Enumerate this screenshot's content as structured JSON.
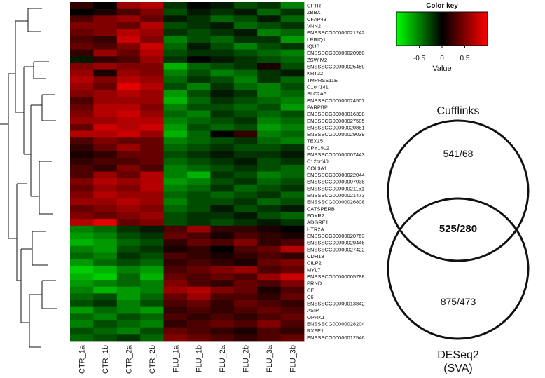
{
  "chart_data": [
    {
      "type": "heatmap",
      "title": "",
      "columns": [
        "CTR_1a",
        "CTR_1b",
        "CTR_2a",
        "CTR_2b",
        "FLU_1a",
        "FLU_1b",
        "FLU_2a",
        "FLU_2b",
        "FLU_3a",
        "FLU_3b"
      ],
      "rows": [
        "CFTR",
        "ZBBX",
        "CFAP43",
        "VNN2",
        "ENSSSCG00000021242",
        "LRRIQ1",
        "IQUB",
        "ENSSSCG00000020960",
        "ZSWIM2",
        "ENSSSCG00000025459",
        "KRT32",
        "TMPRSS11E",
        "C1orf141",
        "SLC2A6",
        "ENSSSCG00000024507",
        "PARPBP",
        "ENSSSCG00000016398",
        "ENSSSCG00000027585",
        "ENSSSCG00000029881",
        "ENSSSCG00000029039",
        "TEX15",
        "DPY19L2",
        "ENSSSCG00000007443",
        "C12orf40",
        "COL9A1",
        "ENSSSCG00000022044",
        "ENSSSCG00000007038",
        "ENSSSCG00000021151",
        "ENSSSCG00000021473",
        "ENSSSCG00000026808",
        "CATSPERB",
        "FOXR2",
        "ADGRE1",
        "HTR2A",
        "ENSSSCG00000020763",
        "ENSSSCG00000029446",
        "ENSSSCG00000027422",
        "CDH19",
        "CILP2",
        "MYL7",
        "ENSSSCG00000005788",
        "PRND",
        "CEL",
        "C6",
        "ENSSSCG00000013842",
        "ASIP",
        "OPRK1",
        "ENSSSCG00000028204",
        "RXFP1",
        "ENSSSCG00000012546"
      ],
      "values": [
        [
          0.2,
          0.0,
          0.6,
          0.7,
          -0.2,
          0.0,
          -0.1,
          -0.3,
          -0.2,
          -0.5
        ],
        [
          0.0,
          0.1,
          0.3,
          0.5,
          -0.3,
          -0.1,
          -0.2,
          -0.1,
          -0.4,
          -0.2
        ],
        [
          0.3,
          0.5,
          0.6,
          0.4,
          -0.1,
          -0.2,
          -0.4,
          -0.3,
          -0.1,
          -0.4
        ],
        [
          0.5,
          0.5,
          0.4,
          0.7,
          -0.3,
          -0.2,
          -0.1,
          -0.4,
          -0.3,
          -0.2
        ],
        [
          0.4,
          0.5,
          0.7,
          0.6,
          -0.2,
          -0.3,
          -0.2,
          -0.1,
          -0.5,
          -0.4
        ],
        [
          0.3,
          0.2,
          0.8,
          0.5,
          -0.5,
          -0.3,
          -0.4,
          -0.2,
          -0.2,
          -0.6
        ],
        [
          0.4,
          0.3,
          0.5,
          0.8,
          -0.4,
          -0.1,
          -0.3,
          -0.5,
          -0.3,
          -0.2
        ],
        [
          0.2,
          0.6,
          0.4,
          0.7,
          -0.3,
          -0.2,
          -0.2,
          -0.3,
          -0.4,
          -0.5
        ],
        [
          -0.1,
          0.2,
          0.3,
          0.6,
          -0.2,
          0.0,
          -0.1,
          -0.2,
          -0.3,
          -0.4
        ],
        [
          0.5,
          0.6,
          0.5,
          0.5,
          -0.7,
          -0.4,
          -0.3,
          -0.2,
          0.1,
          -0.3
        ],
        [
          0.6,
          0.1,
          0.6,
          0.5,
          -0.5,
          -0.3,
          -0.5,
          -0.4,
          -0.2,
          -0.1
        ],
        [
          0.7,
          0.5,
          0.7,
          0.6,
          -0.4,
          -0.2,
          -0.3,
          -0.5,
          -0.2,
          -0.4
        ],
        [
          0.6,
          0.4,
          0.9,
          0.7,
          -0.3,
          -0.5,
          -0.2,
          -0.4,
          -0.5,
          -0.3
        ],
        [
          0.5,
          0.6,
          0.7,
          0.6,
          -0.6,
          -0.3,
          -0.1,
          -0.2,
          -0.5,
          -0.4
        ],
        [
          0.3,
          0.6,
          0.6,
          0.6,
          -0.7,
          -0.4,
          -0.2,
          -0.3,
          -0.4,
          -0.5
        ],
        [
          0.4,
          0.7,
          0.7,
          0.5,
          -0.5,
          -0.3,
          -0.3,
          -0.4,
          -0.3,
          -0.6
        ],
        [
          0.5,
          0.7,
          0.8,
          0.6,
          -0.4,
          -0.5,
          -0.2,
          -0.3,
          -0.4,
          -0.3
        ],
        [
          0.6,
          0.6,
          0.7,
          0.7,
          -0.5,
          -0.4,
          -0.3,
          -0.2,
          -0.5,
          -0.4
        ],
        [
          0.4,
          0.8,
          0.7,
          0.8,
          -0.6,
          -0.3,
          -0.4,
          -0.3,
          -0.6,
          -0.5
        ],
        [
          0.7,
          0.7,
          0.8,
          0.6,
          -0.7,
          -0.4,
          0.0,
          0.2,
          -0.5,
          -0.4
        ],
        [
          0.3,
          0.5,
          0.4,
          0.4,
          -0.5,
          -0.4,
          -0.3,
          -0.2,
          -0.4,
          -0.5
        ],
        [
          0.2,
          0.4,
          0.6,
          0.4,
          -0.4,
          -0.3,
          -0.2,
          -0.3,
          -0.3,
          -0.2
        ],
        [
          0.1,
          0.2,
          0.4,
          0.4,
          -0.3,
          -0.2,
          -0.1,
          -0.2,
          -0.2,
          -0.1
        ],
        [
          0.2,
          0.3,
          0.3,
          0.4,
          -0.4,
          -0.3,
          -0.2,
          -0.1,
          -0.3,
          -0.2
        ],
        [
          0.3,
          0.2,
          0.5,
          0.3,
          -0.5,
          -0.4,
          -0.3,
          -0.2,
          -0.3,
          -0.4
        ],
        [
          0.3,
          0.6,
          0.4,
          0.7,
          -0.5,
          -0.7,
          -0.2,
          -0.3,
          -0.5,
          -0.4
        ],
        [
          0.5,
          0.7,
          0.6,
          0.7,
          -0.6,
          -0.5,
          -0.3,
          -0.2,
          -0.4,
          -0.3
        ],
        [
          0.4,
          0.6,
          0.5,
          0.7,
          -0.5,
          -0.4,
          -0.2,
          -0.4,
          -0.3,
          -0.2
        ],
        [
          0.5,
          0.7,
          0.6,
          0.6,
          -0.4,
          -0.3,
          -0.4,
          -0.3,
          -0.2,
          -0.4
        ],
        [
          0.6,
          0.6,
          0.7,
          0.6,
          -0.5,
          -0.3,
          -0.3,
          -0.2,
          -0.4,
          -0.3
        ],
        [
          0.4,
          0.5,
          0.6,
          0.5,
          -0.4,
          -0.3,
          -0.1,
          -0.3,
          -0.2,
          -0.1
        ],
        [
          0.5,
          0.4,
          0.5,
          0.6,
          -0.3,
          -0.2,
          -0.2,
          -0.1,
          -0.3,
          -0.4
        ],
        [
          0.7,
          0.9,
          0.4,
          0.5,
          -0.3,
          -0.2,
          -0.3,
          -0.2,
          -0.1,
          -0.2
        ],
        [
          -0.5,
          -0.4,
          -0.2,
          -0.1,
          0.3,
          0.6,
          0.2,
          0.2,
          0.1,
          0.0
        ],
        [
          -0.6,
          -0.5,
          -0.3,
          -0.2,
          0.4,
          0.3,
          0.1,
          0.3,
          0.2,
          0.1
        ],
        [
          -0.7,
          -0.6,
          -0.4,
          -0.3,
          0.2,
          0.4,
          0.3,
          0.5,
          0.2,
          0.3
        ],
        [
          -0.5,
          -0.6,
          -0.3,
          -0.2,
          0.1,
          0.2,
          0.0,
          0.3,
          0.4,
          0.7
        ],
        [
          -0.4,
          -0.5,
          -0.2,
          -0.3,
          0.3,
          0.2,
          0.1,
          0.2,
          0.3,
          0.2
        ],
        [
          -0.6,
          -0.4,
          -0.3,
          -0.4,
          0.2,
          0.3,
          0.2,
          0.1,
          0.4,
          0.5
        ],
        [
          -0.8,
          -0.7,
          -0.5,
          -0.6,
          0.3,
          0.4,
          0.5,
          0.6,
          0.3,
          0.4
        ],
        [
          -0.7,
          -0.8,
          -0.4,
          -0.7,
          0.4,
          0.3,
          0.4,
          0.3,
          0.6,
          0.8
        ],
        [
          -0.6,
          -0.5,
          -0.4,
          -0.5,
          0.5,
          0.3,
          0.2,
          0.4,
          0.3,
          0.5
        ],
        [
          -0.5,
          -0.7,
          -0.6,
          -0.5,
          0.6,
          0.7,
          0.5,
          0.4,
          0.1,
          0.3
        ],
        [
          -0.4,
          -0.3,
          -0.6,
          -0.4,
          0.4,
          0.6,
          0.3,
          0.3,
          0.2,
          0.4
        ],
        [
          -0.3,
          -0.2,
          -0.5,
          -0.3,
          0.3,
          0.4,
          0.2,
          0.4,
          0.3,
          0.2
        ],
        [
          -0.6,
          -0.4,
          -0.5,
          -0.6,
          0.2,
          0.3,
          0.2,
          0.3,
          0.4,
          0.3
        ],
        [
          -0.4,
          -0.5,
          -0.3,
          -0.4,
          0.3,
          0.2,
          0.3,
          0.2,
          0.3,
          0.4
        ],
        [
          -0.5,
          -0.3,
          -0.4,
          -0.5,
          0.2,
          0.3,
          0.4,
          0.3,
          0.5,
          0.3
        ],
        [
          -0.3,
          -0.4,
          -0.5,
          -0.3,
          0.4,
          0.3,
          0.2,
          0.1,
          0.3,
          0.2
        ],
        [
          -0.4,
          -0.3,
          -0.2,
          -0.4,
          0.5,
          0.4,
          0.3,
          0.2,
          0.3,
          0.4
        ]
      ],
      "color_scale": {
        "low": "#00ff00",
        "mid": "#000000",
        "high": "#ff0000",
        "vmin": -1,
        "vmax": 1
      }
    },
    {
      "type": "color_key",
      "title": "Color key",
      "ticks": [
        "-0.5",
        "0",
        "0.5"
      ],
      "tick_values": [
        -0.5,
        0,
        0.5
      ],
      "range": [
        -1,
        1
      ],
      "xlabel": "Value"
    },
    {
      "type": "venn",
      "sets": [
        {
          "name": "Cufflinks",
          "only_label": "541/68"
        },
        {
          "name": "DESeq2",
          "subtitle": "(SVA)",
          "only_label": "875/473"
        }
      ],
      "intersection_label": "525/280"
    }
  ],
  "colors": {
    "green": "#00ff00",
    "black": "#000000",
    "red": "#ff0000"
  }
}
